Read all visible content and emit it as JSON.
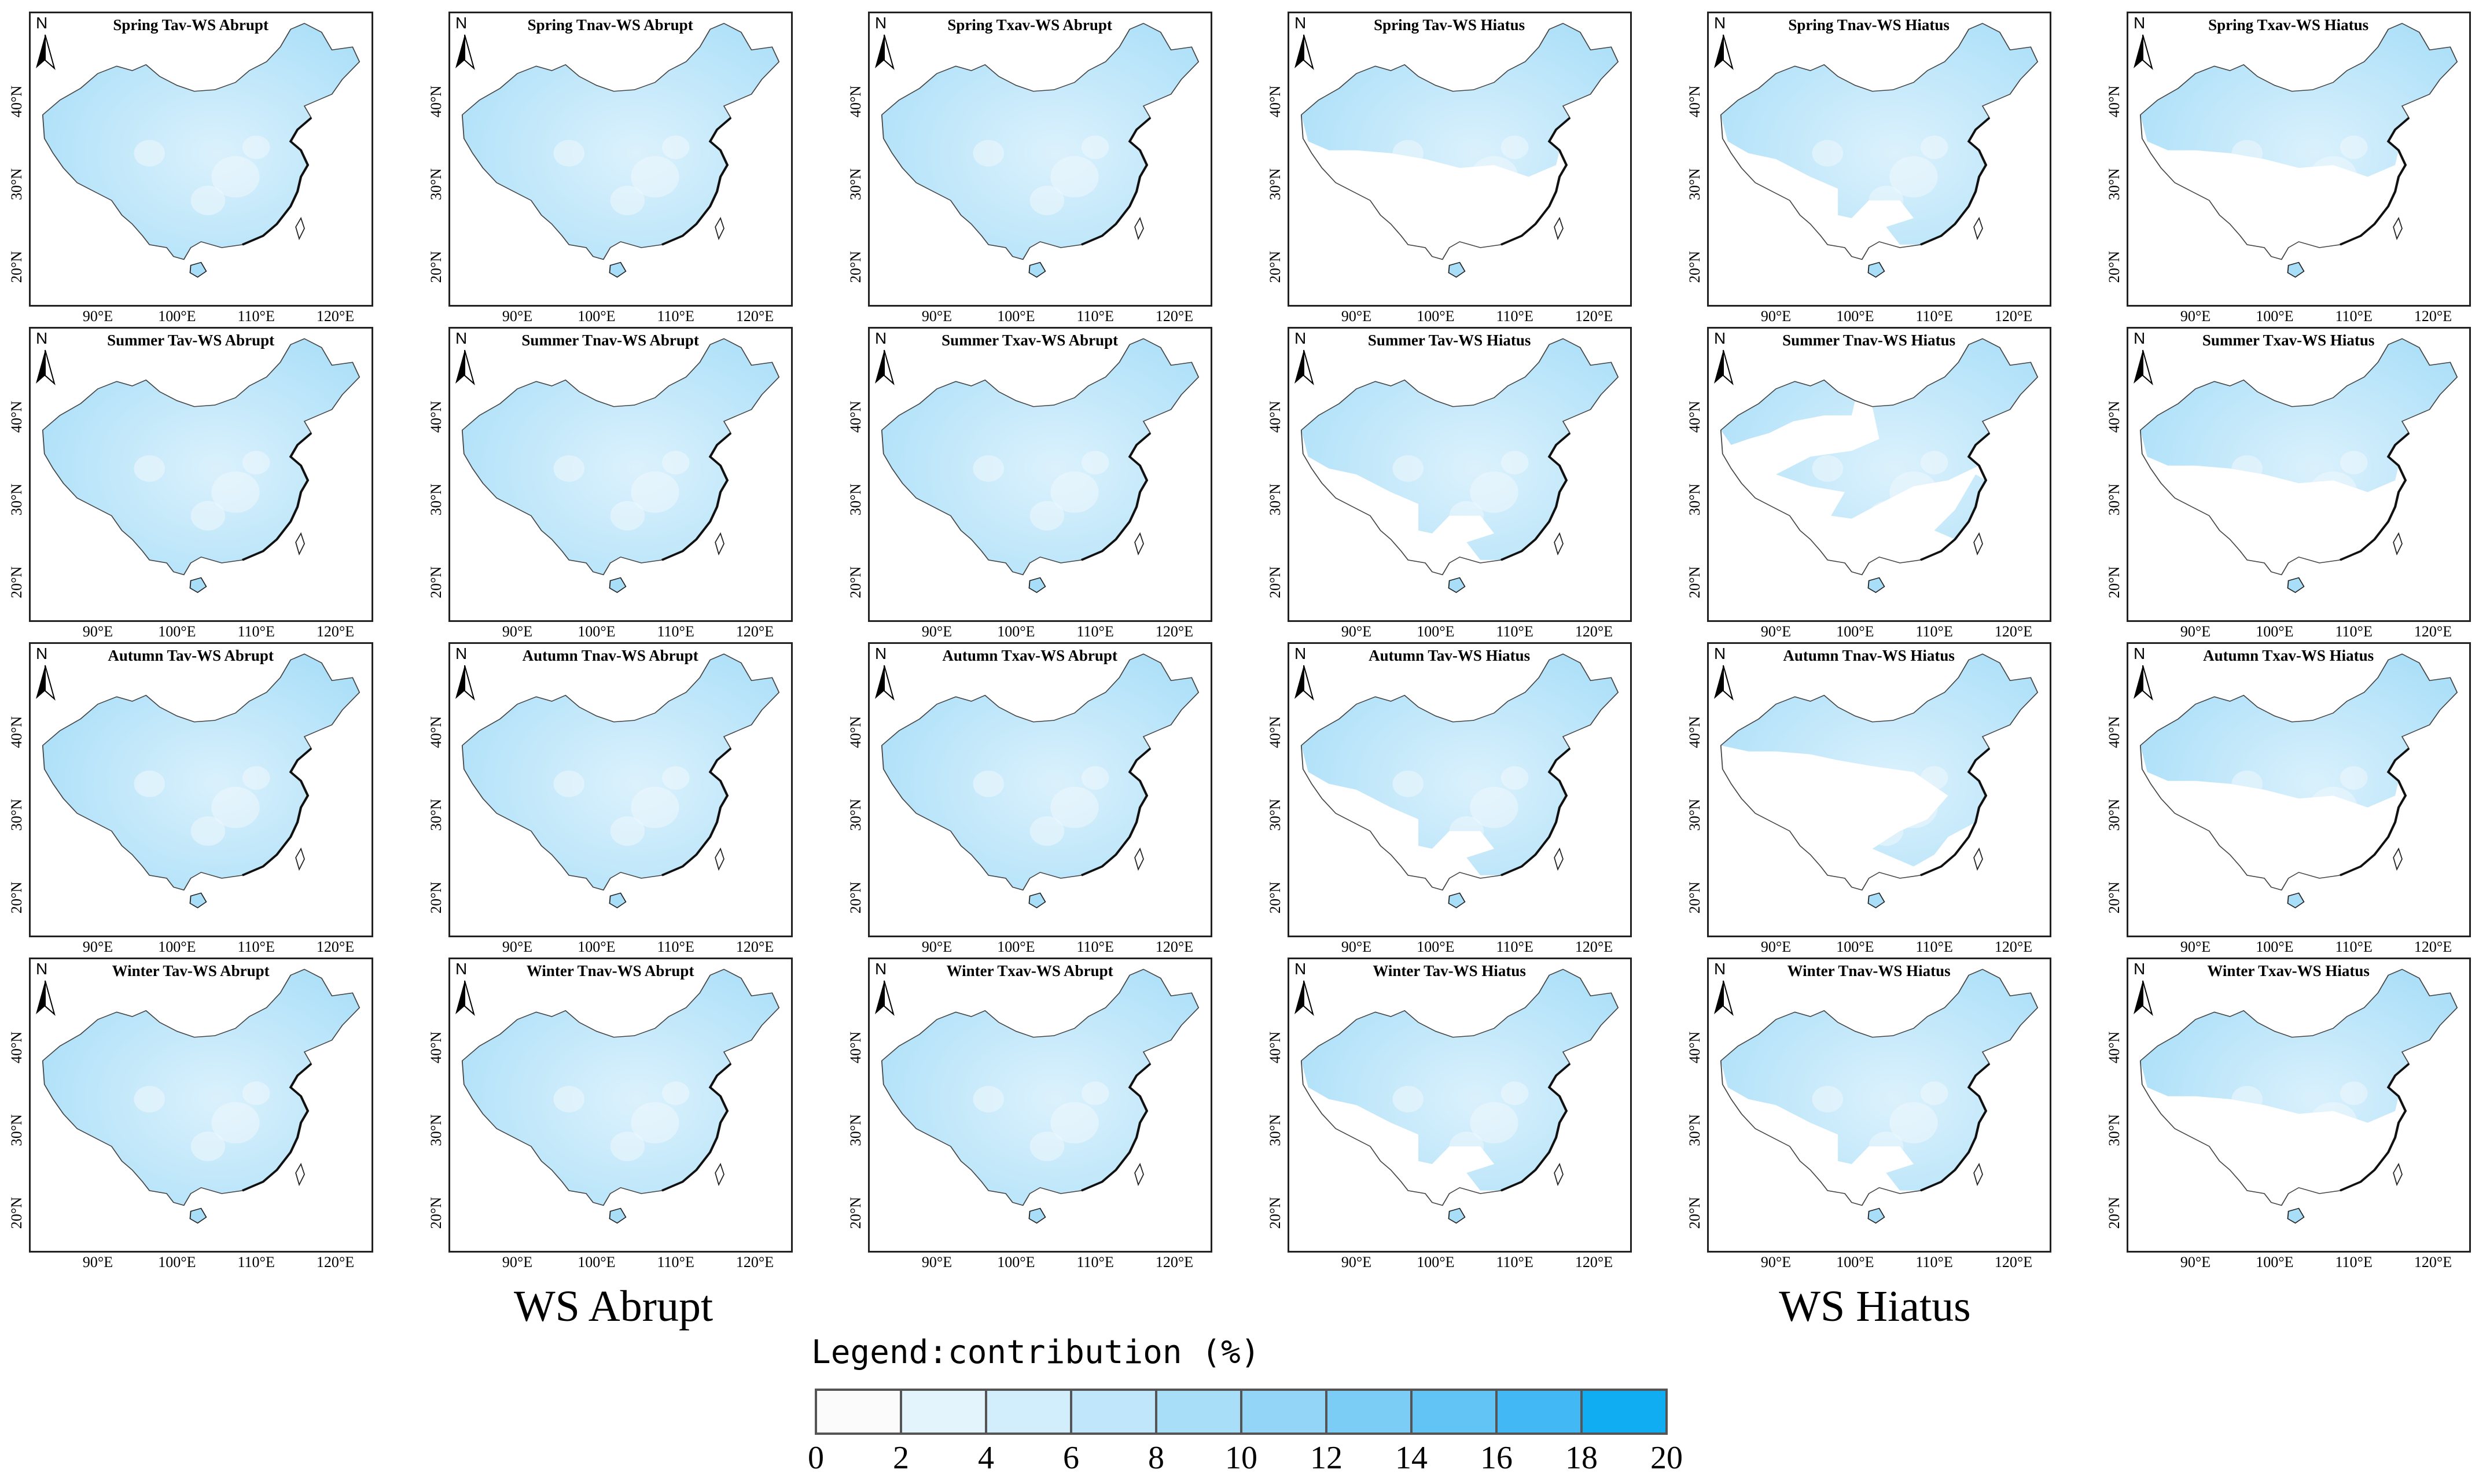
{
  "panels": [
    {
      "title": "Spring Tav-WS Abrupt",
      "group": "abrupt",
      "coverage": "full",
      "intensity": 0.55
    },
    {
      "title": "Spring Tnav-WS Abrupt",
      "group": "abrupt",
      "coverage": "full",
      "intensity": 0.5
    },
    {
      "title": "Spring Txav-WS Abrupt",
      "group": "abrupt",
      "coverage": "full",
      "intensity": 0.5
    },
    {
      "title": "Spring Tav-WS Hiatus",
      "group": "hiatus",
      "coverage": "north",
      "intensity": 0.55
    },
    {
      "title": "Spring Tnav-WS Hiatus",
      "group": "hiatus",
      "coverage": "north-east",
      "intensity": 0.5
    },
    {
      "title": "Spring Txav-WS Hiatus",
      "group": "hiatus",
      "coverage": "north",
      "intensity": 0.55
    },
    {
      "title": "Summer Tav-WS Abrupt",
      "group": "abrupt",
      "coverage": "full",
      "intensity": 0.55
    },
    {
      "title": "Summer Tnav-WS Abrupt",
      "group": "abrupt",
      "coverage": "full",
      "intensity": 0.5
    },
    {
      "title": "Summer Txav-WS Abrupt",
      "group": "abrupt",
      "coverage": "full",
      "intensity": 0.5
    },
    {
      "title": "Summer Tav-WS Hiatus",
      "group": "hiatus",
      "coverage": "north-east",
      "intensity": 0.5
    },
    {
      "title": "Summer Tnav-WS Hiatus",
      "group": "hiatus",
      "coverage": "bands",
      "intensity": 0.5
    },
    {
      "title": "Summer Txav-WS Hiatus",
      "group": "hiatus",
      "coverage": "north",
      "intensity": 0.55
    },
    {
      "title": "Autumn Tav-WS Abrupt",
      "group": "abrupt",
      "coverage": "full",
      "intensity": 0.6
    },
    {
      "title": "Autumn Tnav-WS Abrupt",
      "group": "abrupt",
      "coverage": "full",
      "intensity": 0.5
    },
    {
      "title": "Autumn Txav-WS Abrupt",
      "group": "abrupt",
      "coverage": "full",
      "intensity": 0.55
    },
    {
      "title": "Autumn Tav-WS Hiatus",
      "group": "hiatus",
      "coverage": "north-east",
      "intensity": 0.55
    },
    {
      "title": "Autumn Tnav-WS Hiatus",
      "group": "hiatus",
      "coverage": "east",
      "intensity": 0.5
    },
    {
      "title": "Autumn Txav-WS Hiatus",
      "group": "hiatus",
      "coverage": "north",
      "intensity": 0.6
    },
    {
      "title": "Winter Tav-WS Abrupt",
      "group": "abrupt",
      "coverage": "full",
      "intensity": 0.55
    },
    {
      "title": "Winter Tnav-WS Abrupt",
      "group": "abrupt",
      "coverage": "full",
      "intensity": 0.5
    },
    {
      "title": "Winter Txav-WS Abrupt",
      "group": "abrupt",
      "coverage": "full",
      "intensity": 0.5
    },
    {
      "title": "Winter Tav-WS Hiatus",
      "group": "hiatus",
      "coverage": "north-east",
      "intensity": 0.55
    },
    {
      "title": "Winter Tnav-WS Hiatus",
      "group": "hiatus",
      "coverage": "north-east",
      "intensity": 0.5
    },
    {
      "title": "Winter Txav-WS Hiatus",
      "group": "hiatus",
      "coverage": "north",
      "intensity": 0.6
    }
  ],
  "axes": {
    "x_ticks": [
      "90°E",
      "100°E",
      "110°E",
      "120°E"
    ],
    "y_ticks": [
      "40°N",
      "30°N",
      "20°N"
    ]
  },
  "north_label": "N",
  "group_labels": {
    "abrupt": "WS Abrupt",
    "hiatus": "WS Hiatus"
  },
  "legend": {
    "title": "Legend:contribution (%)",
    "ticks": [
      "0",
      "2",
      "4",
      "6",
      "8",
      "10",
      "12",
      "14",
      "16",
      "18",
      "20"
    ],
    "colors": [
      "#fbfbfb",
      "#e4f4fc",
      "#d2edfb",
      "#bfe6fa",
      "#a8def8",
      "#92d5f7",
      "#7ccdf6",
      "#62c3f5",
      "#42b8f5",
      "#10adf3"
    ]
  },
  "colors": {
    "map_fill": "#a8def8",
    "map_outline": "#444444",
    "coast": "#111111"
  }
}
